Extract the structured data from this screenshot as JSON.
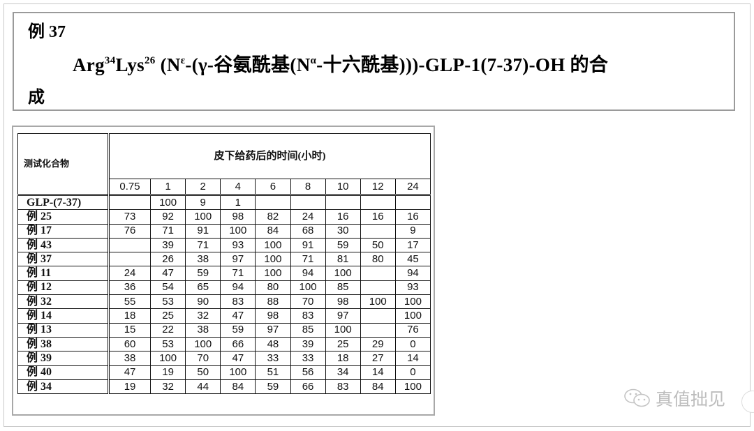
{
  "heading": {
    "example": "例 37",
    "title": {
      "p1": "Arg",
      "sup1": "34",
      "p2": "Lys",
      "sup2": "26",
      "p3": " (N",
      "sup3": "ε",
      "p4": "-(γ-谷氨酰基(N",
      "sup4": "α",
      "p5": "-十六酰基)))-GLP-1(7-37)-OH 的合",
      "line3": "成"
    }
  },
  "table": {
    "corner": "测试化合物",
    "group_header": "皮下给药后的时间(小时)",
    "times": [
      "0.75",
      "1",
      "2",
      "4",
      "6",
      "8",
      "10",
      "12",
      "24"
    ],
    "rows": [
      {
        "name": "GLP-(7-37)",
        "values": [
          "",
          "100",
          "9",
          "1",
          "",
          "",
          "",
          "",
          ""
        ]
      },
      {
        "name": "例 25",
        "values": [
          "73",
          "92",
          "100",
          "98",
          "82",
          "24",
          "16",
          "16",
          "16"
        ]
      },
      {
        "name": "例 17",
        "values": [
          "76",
          "71",
          "91",
          "100",
          "84",
          "68",
          "30",
          "",
          "9"
        ]
      },
      {
        "name": "例 43",
        "values": [
          "",
          "39",
          "71",
          "93",
          "100",
          "91",
          "59",
          "50",
          "17"
        ]
      },
      {
        "name": "例 37",
        "values": [
          "",
          "26",
          "38",
          "97",
          "100",
          "71",
          "81",
          "80",
          "45"
        ]
      },
      {
        "name": "例 11",
        "values": [
          "24",
          "47",
          "59",
          "71",
          "100",
          "94",
          "100",
          "",
          "94"
        ]
      },
      {
        "name": "例 12",
        "values": [
          "36",
          "54",
          "65",
          "94",
          "80",
          "100",
          "85",
          "",
          "93"
        ]
      },
      {
        "name": "例 32",
        "values": [
          "55",
          "53",
          "90",
          "83",
          "88",
          "70",
          "98",
          "100",
          "100"
        ]
      },
      {
        "name": "例 14",
        "values": [
          "18",
          "25",
          "32",
          "47",
          "98",
          "83",
          "97",
          "",
          "100"
        ]
      },
      {
        "name": "例 13",
        "values": [
          "15",
          "22",
          "38",
          "59",
          "97",
          "85",
          "100",
          "",
          "76"
        ]
      },
      {
        "name": "例 38",
        "values": [
          "60",
          "53",
          "100",
          "66",
          "48",
          "39",
          "25",
          "29",
          "0"
        ]
      },
      {
        "name": "例 39",
        "values": [
          "38",
          "100",
          "70",
          "47",
          "33",
          "33",
          "18",
          "27",
          "14"
        ]
      },
      {
        "name": "例 40",
        "values": [
          "47",
          "19",
          "50",
          "100",
          "51",
          "56",
          "34",
          "14",
          "0"
        ]
      },
      {
        "name": "例 34",
        "values": [
          "19",
          "32",
          "44",
          "84",
          "59",
          "66",
          "83",
          "84",
          "100"
        ]
      }
    ]
  },
  "watermark": {
    "icon": "wechat-icon",
    "text": "真值拙见"
  }
}
